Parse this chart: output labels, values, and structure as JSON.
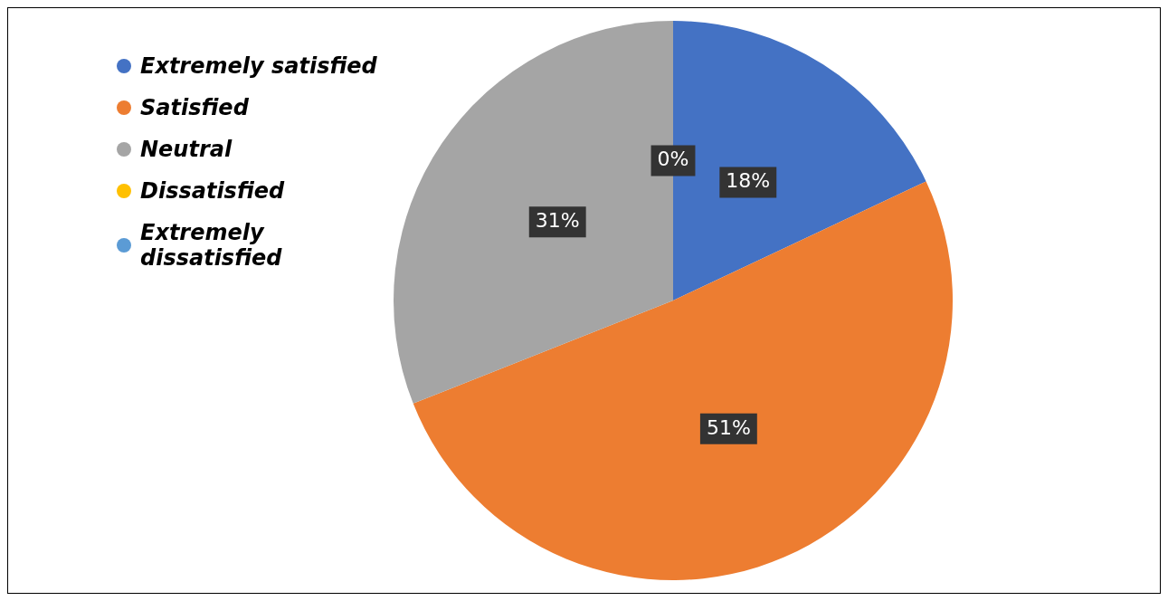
{
  "chart_data": {
    "type": "pie",
    "categories": [
      "Extremely satisfied",
      "Satisfied",
      "Neutral",
      "Dissatisfied",
      "Extremely dissatisfied"
    ],
    "values": [
      18,
      51,
      31,
      0,
      0
    ],
    "colors": [
      "#4472c4",
      "#ed7d31",
      "#a5a5a5",
      "#ffc000",
      "#5b9bd5"
    ],
    "value_labels": [
      "18%",
      "51%",
      "31%",
      "0%",
      null
    ],
    "legend": "left"
  }
}
